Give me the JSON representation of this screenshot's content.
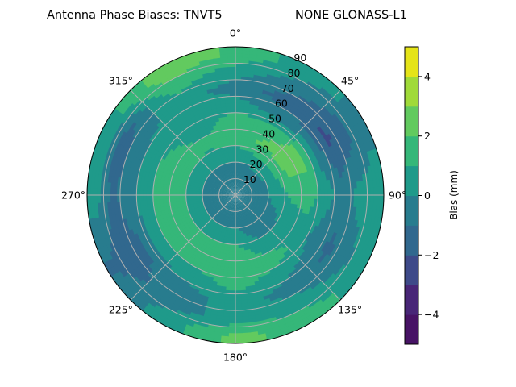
{
  "chart_data": {
    "type": "heatmap",
    "projection": "polar",
    "title_left": "Antenna Phase Biases: TNVT5",
    "title_right": "NONE GLONASS-L1",
    "theta_zero": "top",
    "theta_direction": "clockwise",
    "theta_tick_labels": [
      "0°",
      "45°",
      "90°",
      "135°",
      "180°",
      "225°",
      "270°",
      "315°"
    ],
    "theta_ticks": [
      0,
      45,
      90,
      135,
      180,
      225,
      270,
      315
    ],
    "radial_ticks": [
      10,
      20,
      30,
      40,
      50,
      60,
      70,
      80,
      90
    ],
    "radial_tick_labels": [
      "10",
      "20",
      "30",
      "40",
      "50",
      "60",
      "70",
      "80",
      "90"
    ],
    "rlim": [
      0,
      90
    ],
    "grid": true,
    "levels": [
      -5,
      -4,
      -3,
      -2,
      -1,
      0,
      1,
      2,
      3,
      4,
      5
    ],
    "level_colors": [
      "#471365",
      "#482677",
      "#3e4a89",
      "#31688e",
      "#287c8e",
      "#1f9a8a",
      "#35b779",
      "#62ca5f",
      "#a0da39",
      "#e5e419"
    ],
    "colorbar": {
      "label": "Bias (mm)",
      "ticks": [
        -4,
        -2,
        0,
        2,
        4
      ],
      "tick_labels": [
        "−4",
        "−2",
        "0",
        "2",
        "4"
      ],
      "range": [
        -5,
        5
      ]
    },
    "field": {
      "azimuth_deg": [
        0,
        30,
        60,
        90,
        120,
        150,
        180,
        210,
        240,
        270,
        300,
        330
      ],
      "zenith_deg": [
        5,
        15,
        25,
        35,
        45,
        55,
        65,
        75,
        85
      ],
      "bias_mm": [
        [
          -0.5,
          -0.5,
          0.5,
          1.5,
          1.5,
          0.5,
          -0.5,
          0.5,
          1.8
        ],
        [
          -0.5,
          -0.5,
          0.8,
          2.2,
          1.5,
          -0.5,
          -1.5,
          -0.5,
          0.5
        ],
        [
          -0.5,
          -0.5,
          0.8,
          2.5,
          2.3,
          -0.5,
          -2.2,
          -1.5,
          -0.3
        ],
        [
          -0.5,
          -0.5,
          0.5,
          1.2,
          1.5,
          0.5,
          -0.5,
          0.3,
          0.5
        ],
        [
          -0.5,
          -0.5,
          -0.3,
          0.5,
          0.5,
          -0.5,
          -1.2,
          -0.5,
          0.5
        ],
        [
          -0.5,
          -0.5,
          -0.5,
          0.5,
          1.5,
          0.5,
          -0.5,
          0.5,
          1.5
        ],
        [
          -0.5,
          -0.5,
          0.5,
          1.5,
          1.5,
          1.3,
          0.5,
          0.5,
          2.3
        ],
        [
          -0.5,
          -0.5,
          0.5,
          1.5,
          1.5,
          0.5,
          -0.5,
          -0.5,
          0.5
        ],
        [
          -0.5,
          -0.5,
          0.5,
          1.5,
          1.5,
          0.5,
          -1.2,
          -1.5,
          -1.2
        ],
        [
          -0.5,
          -0.5,
          0.5,
          1.5,
          1.5,
          0.5,
          -0.5,
          -1.3,
          0.5
        ],
        [
          -0.5,
          -0.5,
          0.5,
          1.5,
          1.3,
          0.5,
          -0.5,
          -1.5,
          0.5
        ],
        [
          -0.5,
          -0.5,
          0.5,
          1.3,
          0.5,
          0.5,
          0.5,
          1.5,
          2.8
        ]
      ]
    }
  }
}
